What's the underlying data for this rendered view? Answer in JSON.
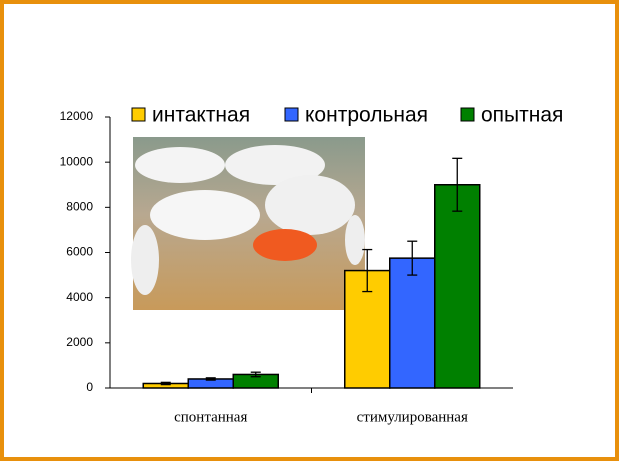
{
  "chart_data": {
    "type": "bar",
    "categories": [
      "спонтанная",
      "стимулированная"
    ],
    "series": [
      {
        "name": "интактная",
        "color": "#ffcc00",
        "values": [
          200,
          5200
        ],
        "errors": [
          50,
          930
        ]
      },
      {
        "name": "контрольная",
        "color": "#3366ff",
        "values": [
          400,
          5750
        ],
        "errors": [
          50,
          750
        ]
      },
      {
        "name": "опытная",
        "color": "#008000",
        "values": [
          600,
          9000
        ],
        "errors": [
          100,
          1170
        ]
      }
    ],
    "ylim": [
      0,
      12000
    ],
    "yticks": [
      0,
      2000,
      4000,
      6000,
      8000,
      10000,
      12000
    ]
  }
}
